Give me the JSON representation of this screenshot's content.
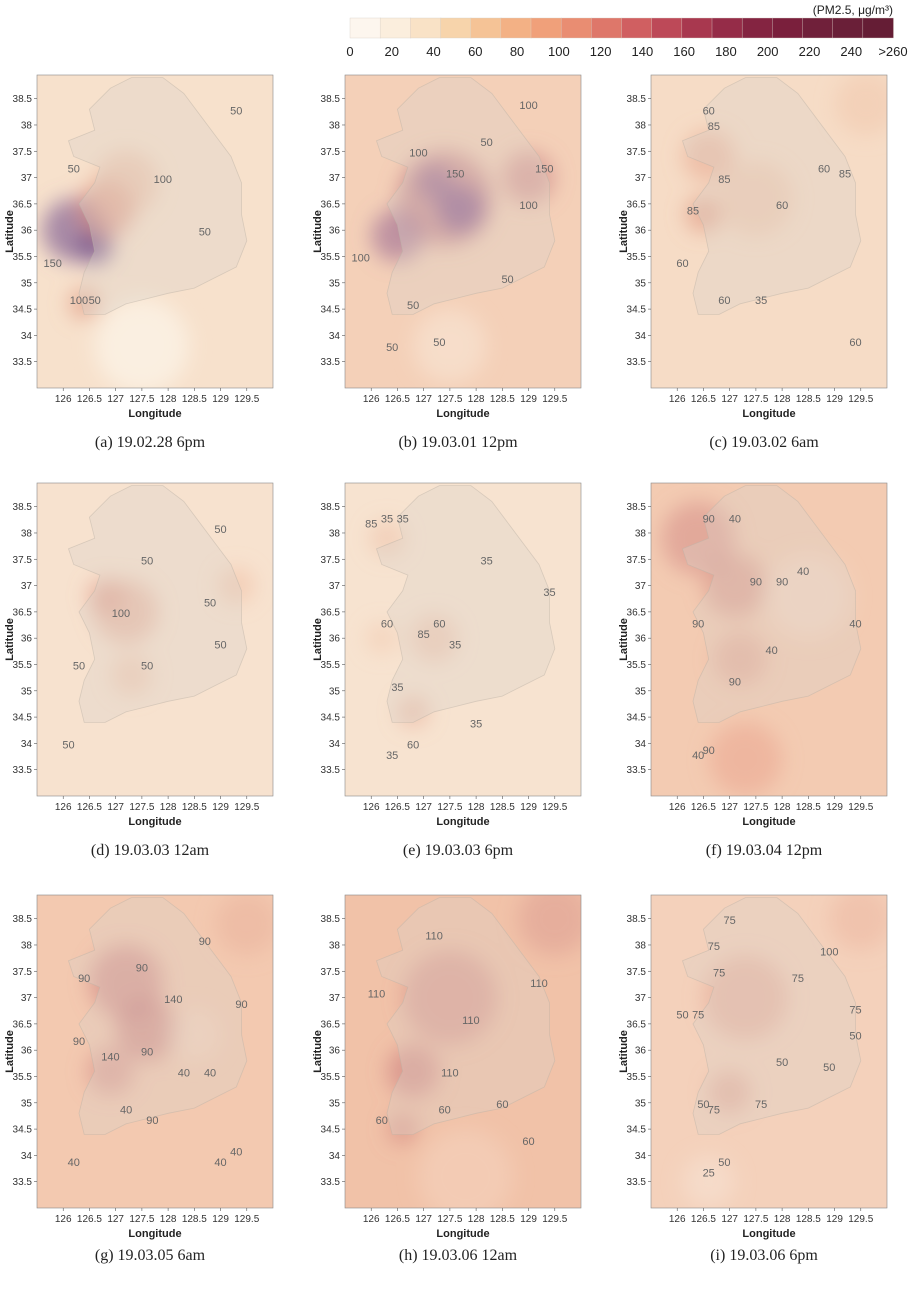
{
  "legend": {
    "unit": "(PM2.5, μg/m³)",
    "ticks": [
      "0",
      "20",
      "40",
      "60",
      "80",
      "100",
      "120",
      "140",
      "160",
      "180",
      "200",
      "220",
      "240",
      ">260"
    ],
    "colors": [
      "#fdf6ee",
      "#fbeedd",
      "#f9e2c6",
      "#f7d4ab",
      "#f5c396",
      "#f3b185",
      "#f0a07a",
      "#e98d72",
      "#de776a",
      "#d05f61",
      "#bd4958",
      "#a8384f",
      "#952c48",
      "#842441",
      "#7a1f3c",
      "#70203a",
      "#6a1f38",
      "#651d35"
    ]
  },
  "axes": {
    "xlabel": "Longitude",
    "ylabel": "Latitude",
    "xticks": [
      "126",
      "126.5",
      "127",
      "127.5",
      "128",
      "128.5",
      "129",
      "129.5"
    ],
    "yticks": [
      "38.5",
      "38",
      "37.5",
      "37",
      "36.5",
      "36",
      "35.5",
      "35",
      "34.5",
      "34",
      "33.5"
    ]
  },
  "panels": [
    {
      "caption": "(a) 19.02.28 6pm",
      "base": "#f7e1cc",
      "blobs": [
        {
          "x": 126.2,
          "y": 36.0,
          "r": 0.6,
          "c": "#8e6c9a",
          "o": 0.75
        },
        {
          "x": 126.6,
          "y": 35.7,
          "r": 0.35,
          "c": "#7a5a8e",
          "o": 0.8
        },
        {
          "x": 126.8,
          "y": 36.4,
          "r": 0.55,
          "c": "#d98a7a",
          "o": 0.6
        },
        {
          "x": 127.2,
          "y": 36.9,
          "r": 0.6,
          "c": "#e9b49a",
          "o": 0.5
        },
        {
          "x": 126.4,
          "y": 34.6,
          "r": 0.3,
          "c": "#e0957f",
          "o": 0.6
        },
        {
          "x": 127.5,
          "y": 33.8,
          "r": 0.9,
          "c": "#fbf2e6",
          "o": 0.8
        }
      ],
      "contours": [
        {
          "text": "50",
          "x": 129.3,
          "y": 38.2
        },
        {
          "text": "50",
          "x": 126.2,
          "y": 37.1
        },
        {
          "text": "100",
          "x": 127.9,
          "y": 36.9
        },
        {
          "text": "50",
          "x": 128.7,
          "y": 35.9
        },
        {
          "text": "150",
          "x": 125.8,
          "y": 35.3
        },
        {
          "text": "100",
          "x": 126.3,
          "y": 34.6
        },
        {
          "text": "50",
          "x": 126.6,
          "y": 34.6
        }
      ]
    },
    {
      "caption": "(b) 19.03.01 12pm",
      "base": "#f4d0b8",
      "blobs": [
        {
          "x": 127.4,
          "y": 36.6,
          "r": 0.9,
          "c": "#b76c7a",
          "o": 0.55
        },
        {
          "x": 127.7,
          "y": 36.4,
          "r": 0.45,
          "c": "#8a5c90",
          "o": 0.75
        },
        {
          "x": 127.2,
          "y": 36.9,
          "r": 0.35,
          "c": "#8e6294",
          "o": 0.6
        },
        {
          "x": 126.5,
          "y": 35.9,
          "r": 0.5,
          "c": "#9c6a92",
          "o": 0.6
        },
        {
          "x": 129.0,
          "y": 37.0,
          "r": 0.5,
          "c": "#c97f84",
          "o": 0.55
        },
        {
          "x": 127.5,
          "y": 33.8,
          "r": 0.7,
          "c": "#f9e6d6",
          "o": 0.6
        }
      ],
      "contours": [
        {
          "text": "100",
          "x": 129.0,
          "y": 38.3
        },
        {
          "text": "100",
          "x": 126.9,
          "y": 37.4
        },
        {
          "text": "50",
          "x": 128.2,
          "y": 37.6
        },
        {
          "text": "150",
          "x": 127.6,
          "y": 37.0
        },
        {
          "text": "150",
          "x": 129.3,
          "y": 37.1
        },
        {
          "text": "100",
          "x": 129.0,
          "y": 36.4
        },
        {
          "text": "100",
          "x": 125.8,
          "y": 35.4
        },
        {
          "text": "50",
          "x": 128.6,
          "y": 35.0
        },
        {
          "text": "50",
          "x": 126.8,
          "y": 34.5
        },
        {
          "text": "50",
          "x": 126.4,
          "y": 33.7
        },
        {
          "text": "50",
          "x": 127.3,
          "y": 33.8
        }
      ]
    },
    {
      "caption": "(c) 19.03.02 6am",
      "base": "#f6dcc6",
      "blobs": [
        {
          "x": 126.6,
          "y": 37.4,
          "r": 0.5,
          "c": "#e7a48c",
          "o": 0.5
        },
        {
          "x": 126.5,
          "y": 36.3,
          "r": 0.35,
          "c": "#df8f7a",
          "o": 0.55
        },
        {
          "x": 127.5,
          "y": 36.6,
          "r": 0.7,
          "c": "#ecbaa0",
          "o": 0.45
        },
        {
          "x": 129.6,
          "y": 38.4,
          "r": 0.6,
          "c": "#f0c3a8",
          "o": 0.45
        }
      ],
      "contours": [
        {
          "text": "60",
          "x": 126.6,
          "y": 38.2
        },
        {
          "text": "85",
          "x": 126.7,
          "y": 37.9
        },
        {
          "text": "85",
          "x": 126.9,
          "y": 36.9
        },
        {
          "text": "60",
          "x": 128.8,
          "y": 37.1
        },
        {
          "text": "85",
          "x": 129.2,
          "y": 37.0
        },
        {
          "text": "85",
          "x": 126.3,
          "y": 36.3
        },
        {
          "text": "60",
          "x": 128.0,
          "y": 36.4
        },
        {
          "text": "60",
          "x": 126.1,
          "y": 35.3
        },
        {
          "text": "60",
          "x": 126.9,
          "y": 34.6
        },
        {
          "text": "35",
          "x": 127.6,
          "y": 34.6
        },
        {
          "text": "60",
          "x": 129.4,
          "y": 33.8
        }
      ]
    },
    {
      "caption": "(d) 19.03.03 12am",
      "base": "#f7e2cf",
      "blobs": [
        {
          "x": 127.2,
          "y": 36.5,
          "r": 0.6,
          "c": "#e2a08c",
          "o": 0.5
        },
        {
          "x": 126.8,
          "y": 36.8,
          "r": 0.35,
          "c": "#dc8f7f",
          "o": 0.45
        },
        {
          "x": 129.3,
          "y": 37.0,
          "r": 0.35,
          "c": "#f0b99c",
          "o": 0.45
        },
        {
          "x": 127.3,
          "y": 35.3,
          "r": 0.4,
          "c": "#ecb49b",
          "o": 0.4
        }
      ],
      "contours": [
        {
          "text": "50",
          "x": 129.0,
          "y": 38.0
        },
        {
          "text": "50",
          "x": 127.6,
          "y": 37.4
        },
        {
          "text": "100",
          "x": 127.1,
          "y": 36.4
        },
        {
          "text": "50",
          "x": 128.8,
          "y": 36.6
        },
        {
          "text": "50",
          "x": 129.0,
          "y": 35.8
        },
        {
          "text": "50",
          "x": 126.3,
          "y": 35.4
        },
        {
          "text": "50",
          "x": 127.6,
          "y": 35.4
        },
        {
          "text": "50",
          "x": 126.1,
          "y": 33.9
        }
      ]
    },
    {
      "caption": "(e) 19.03.03 6pm",
      "base": "#f7e3d0",
      "blobs": [
        {
          "x": 126.3,
          "y": 37.9,
          "r": 0.35,
          "c": "#eab39a",
          "o": 0.4
        },
        {
          "x": 127.2,
          "y": 36.0,
          "r": 0.45,
          "c": "#e9b39c",
          "o": 0.45
        },
        {
          "x": 126.8,
          "y": 34.6,
          "r": 0.3,
          "c": "#e3a08a",
          "o": 0.45
        },
        {
          "x": 126.2,
          "y": 36.0,
          "r": 0.3,
          "c": "#efc0a6",
          "o": 0.4
        }
      ],
      "contours": [
        {
          "text": "85",
          "x": 126.0,
          "y": 38.1
        },
        {
          "text": "35",
          "x": 126.6,
          "y": 38.2
        },
        {
          "text": "35",
          "x": 126.3,
          "y": 38.2
        },
        {
          "text": "35",
          "x": 128.2,
          "y": 37.4
        },
        {
          "text": "35",
          "x": 129.4,
          "y": 36.8
        },
        {
          "text": "60",
          "x": 126.3,
          "y": 36.2
        },
        {
          "text": "60",
          "x": 127.3,
          "y": 36.2
        },
        {
          "text": "85",
          "x": 127.0,
          "y": 36.0
        },
        {
          "text": "35",
          "x": 127.6,
          "y": 35.8
        },
        {
          "text": "35",
          "x": 126.5,
          "y": 35.0
        },
        {
          "text": "35",
          "x": 128.0,
          "y": 34.3
        },
        {
          "text": "60",
          "x": 126.8,
          "y": 33.9
        },
        {
          "text": "35",
          "x": 126.4,
          "y": 33.7
        }
      ]
    },
    {
      "caption": "(f) 19.03.04 12pm",
      "base": "#f3cbb2",
      "blobs": [
        {
          "x": 126.4,
          "y": 37.9,
          "r": 0.7,
          "c": "#d58c86",
          "o": 0.55
        },
        {
          "x": 127.1,
          "y": 37.0,
          "r": 0.6,
          "c": "#d1877f",
          "o": 0.5
        },
        {
          "x": 127.2,
          "y": 35.6,
          "r": 0.5,
          "c": "#db9788",
          "o": 0.45
        },
        {
          "x": 128.5,
          "y": 36.8,
          "r": 0.8,
          "c": "#f7e0cf",
          "o": 0.5
        },
        {
          "x": 127.3,
          "y": 33.7,
          "r": 0.7,
          "c": "#eba590",
          "o": 0.55
        }
      ],
      "contours": [
        {
          "text": "90",
          "x": 126.6,
          "y": 38.2
        },
        {
          "text": "40",
          "x": 127.1,
          "y": 38.2
        },
        {
          "text": "90",
          "x": 127.5,
          "y": 37.0
        },
        {
          "text": "90",
          "x": 128.0,
          "y": 37.0
        },
        {
          "text": "40",
          "x": 128.4,
          "y": 37.2
        },
        {
          "text": "90",
          "x": 126.4,
          "y": 36.2
        },
        {
          "text": "40",
          "x": 129.4,
          "y": 36.2
        },
        {
          "text": "40",
          "x": 127.8,
          "y": 35.7
        },
        {
          "text": "90",
          "x": 127.1,
          "y": 35.1
        },
        {
          "text": "40",
          "x": 126.4,
          "y": 33.7
        },
        {
          "text": "90",
          "x": 126.6,
          "y": 33.8
        }
      ]
    },
    {
      "caption": "(g) 19.03.05 6am",
      "base": "#f3c9b0",
      "blobs": [
        {
          "x": 127.2,
          "y": 37.3,
          "r": 0.7,
          "c": "#c87a7c",
          "o": 0.55
        },
        {
          "x": 127.6,
          "y": 36.4,
          "r": 0.6,
          "c": "#c47478",
          "o": 0.55
        },
        {
          "x": 126.9,
          "y": 35.6,
          "r": 0.45,
          "c": "#cf8683",
          "o": 0.5
        },
        {
          "x": 129.5,
          "y": 38.4,
          "r": 0.6,
          "c": "#eab29c",
          "o": 0.5
        },
        {
          "x": 128.5,
          "y": 36.3,
          "r": 0.5,
          "c": "#f5dac6",
          "o": 0.5
        }
      ],
      "contours": [
        {
          "text": "90",
          "x": 128.7,
          "y": 38.0
        },
        {
          "text": "90",
          "x": 126.4,
          "y": 37.3
        },
        {
          "text": "90",
          "x": 127.5,
          "y": 37.5
        },
        {
          "text": "140",
          "x": 128.1,
          "y": 36.9
        },
        {
          "text": "90",
          "x": 129.4,
          "y": 36.8
        },
        {
          "text": "90",
          "x": 126.3,
          "y": 36.1
        },
        {
          "text": "140",
          "x": 126.9,
          "y": 35.8
        },
        {
          "text": "90",
          "x": 127.6,
          "y": 35.9
        },
        {
          "text": "40",
          "x": 128.3,
          "y": 35.5
        },
        {
          "text": "40",
          "x": 128.8,
          "y": 35.5
        },
        {
          "text": "40",
          "x": 127.2,
          "y": 34.8
        },
        {
          "text": "90",
          "x": 127.7,
          "y": 34.6
        },
        {
          "text": "40",
          "x": 126.2,
          "y": 33.8
        },
        {
          "text": "40",
          "x": 129.0,
          "y": 33.8
        },
        {
          "text": "40",
          "x": 129.3,
          "y": 34.0
        }
      ]
    },
    {
      "caption": "(h) 19.03.06 12am",
      "base": "#f1c2a8",
      "blobs": [
        {
          "x": 127.5,
          "y": 37.0,
          "r": 0.9,
          "c": "#cc8080",
          "o": 0.45
        },
        {
          "x": 126.8,
          "y": 35.6,
          "r": 0.5,
          "c": "#c57477",
          "o": 0.5
        },
        {
          "x": 126.6,
          "y": 34.5,
          "r": 0.3,
          "c": "#d0807a",
          "o": 0.5
        },
        {
          "x": 129.5,
          "y": 38.5,
          "r": 0.7,
          "c": "#dc9b92",
          "o": 0.5
        },
        {
          "x": 127.8,
          "y": 33.6,
          "r": 0.9,
          "c": "#f5d6c2",
          "o": 0.5
        }
      ],
      "contours": [
        {
          "text": "110",
          "x": 127.2,
          "y": 38.1
        },
        {
          "text": "110",
          "x": 126.1,
          "y": 37.0
        },
        {
          "text": "110",
          "x": 127.9,
          "y": 36.5
        },
        {
          "text": "110",
          "x": 129.2,
          "y": 37.2
        },
        {
          "text": "110",
          "x": 127.5,
          "y": 35.5
        },
        {
          "text": "60",
          "x": 127.4,
          "y": 34.8
        },
        {
          "text": "60",
          "x": 128.5,
          "y": 34.9
        },
        {
          "text": "60",
          "x": 126.2,
          "y": 34.6
        },
        {
          "text": "60",
          "x": 129.0,
          "y": 34.2
        }
      ]
    },
    {
      "caption": "(i) 19.03.06 6pm",
      "base": "#f4d1bb",
      "blobs": [
        {
          "x": 127.3,
          "y": 37.0,
          "r": 0.8,
          "c": "#dd9c8c",
          "o": 0.45
        },
        {
          "x": 127.0,
          "y": 35.2,
          "r": 0.4,
          "c": "#da9486",
          "o": 0.45
        },
        {
          "x": 129.5,
          "y": 38.5,
          "r": 0.6,
          "c": "#eab29c",
          "o": 0.45
        },
        {
          "x": 126.6,
          "y": 33.5,
          "r": 0.5,
          "c": "#f8e6d8",
          "o": 0.5
        }
      ],
      "contours": [
        {
          "text": "75",
          "x": 127.0,
          "y": 38.4
        },
        {
          "text": "75",
          "x": 126.7,
          "y": 37.9
        },
        {
          "text": "100",
          "x": 128.9,
          "y": 37.8
        },
        {
          "text": "75",
          "x": 126.8,
          "y": 37.4
        },
        {
          "text": "75",
          "x": 128.3,
          "y": 37.3
        },
        {
          "text": "50",
          "x": 126.1,
          "y": 36.6
        },
        {
          "text": "75",
          "x": 126.4,
          "y": 36.6
        },
        {
          "text": "75",
          "x": 129.4,
          "y": 36.7
        },
        {
          "text": "50",
          "x": 129.4,
          "y": 36.2
        },
        {
          "text": "50",
          "x": 128.0,
          "y": 35.7
        },
        {
          "text": "50",
          "x": 128.9,
          "y": 35.6
        },
        {
          "text": "50",
          "x": 126.5,
          "y": 34.9
        },
        {
          "text": "75",
          "x": 126.7,
          "y": 34.8
        },
        {
          "text": "75",
          "x": 127.6,
          "y": 34.9
        },
        {
          "text": "50",
          "x": 126.9,
          "y": 33.8
        },
        {
          "text": "25",
          "x": 126.6,
          "y": 33.6
        }
      ]
    }
  ]
}
